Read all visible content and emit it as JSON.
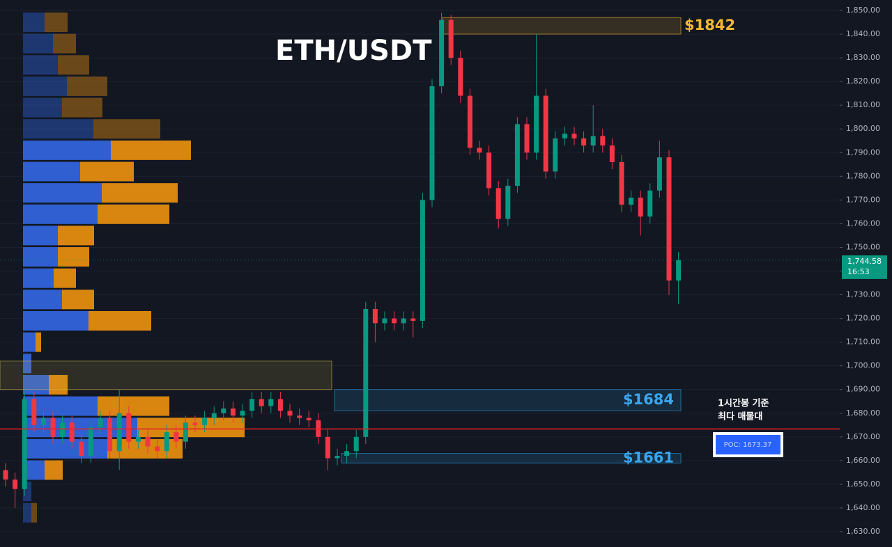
{
  "chart_data": {
    "type": "candlestick",
    "title": "ETH/USDT",
    "open": [
      1656,
      1652,
      1648,
      1686,
      1675,
      1678,
      1670,
      1676,
      1668,
      1662,
      1674,
      1678,
      1664,
      1680,
      1668,
      1670,
      1666,
      1664,
      1672,
      1668,
      1676,
      1675,
      1678,
      1680,
      1682,
      1679,
      1681,
      1686,
      1683,
      1686,
      1681,
      1679,
      1678,
      1677,
      1670,
      1661,
      1662,
      1664,
      1670,
      1724,
      1718,
      1720,
      1718,
      1720,
      1719,
      1770,
      1818,
      1846,
      1830,
      1814,
      1792,
      1790,
      1775,
      1762,
      1776,
      1802,
      1790,
      1814,
      1782,
      1796,
      1798,
      1796,
      1793,
      1797,
      1793,
      1786,
      1768,
      1771,
      1763,
      1774,
      1788,
      1736
    ],
    "high": [
      1659,
      1655,
      1690,
      1689,
      1681,
      1681,
      1679,
      1679,
      1671,
      1677,
      1681,
      1681,
      1690,
      1683,
      1673,
      1673,
      1669,
      1675,
      1675,
      1679,
      1679,
      1681,
      1683,
      1685,
      1685,
      1684,
      1689,
      1689,
      1689,
      1689,
      1684,
      1682,
      1681,
      1680,
      1673,
      1665,
      1667,
      1673,
      1727,
      1727,
      1723,
      1723,
      1723,
      1723,
      1773,
      1821,
      1849,
      1848,
      1833,
      1817,
      1795,
      1793,
      1778,
      1779,
      1805,
      1805,
      1840,
      1817,
      1799,
      1801,
      1801,
      1799,
      1810,
      1800,
      1796,
      1789,
      1774,
      1774,
      1777,
      1795,
      1791,
      1748
    ],
    "low": [
      1649,
      1640,
      1645,
      1672,
      1672,
      1667,
      1667,
      1665,
      1659,
      1659,
      1671,
      1661,
      1656,
      1665,
      1665,
      1663,
      1661,
      1661,
      1665,
      1665,
      1672,
      1672,
      1675,
      1677,
      1676,
      1676,
      1678,
      1680,
      1680,
      1678,
      1676,
      1675,
      1674,
      1667,
      1656,
      1658,
      1659,
      1661,
      1667,
      1710,
      1715,
      1715,
      1715,
      1712,
      1716,
      1767,
      1815,
      1827,
      1811,
      1789,
      1787,
      1772,
      1758,
      1759,
      1773,
      1787,
      1787,
      1779,
      1779,
      1793,
      1793,
      1790,
      1790,
      1790,
      1783,
      1765,
      1765,
      1755,
      1760,
      1771,
      1730,
      1726
    ],
    "close": [
      1652,
      1648,
      1686,
      1675,
      1678,
      1670,
      1676,
      1668,
      1662,
      1674,
      1678,
      1664,
      1680,
      1668,
      1670,
      1666,
      1664,
      1672,
      1668,
      1676,
      1675,
      1678,
      1680,
      1682,
      1679,
      1681,
      1686,
      1683,
      1686,
      1681,
      1679,
      1678,
      1677,
      1670,
      1661,
      1662,
      1664,
      1670,
      1724,
      1718,
      1720,
      1718,
      1720,
      1719,
      1770,
      1818,
      1846,
      1830,
      1814,
      1792,
      1790,
      1775,
      1762,
      1776,
      1802,
      1790,
      1814,
      1782,
      1796,
      1798,
      1796,
      1793,
      1797,
      1793,
      1786,
      1768,
      1771,
      1763,
      1774,
      1788,
      1736,
      1744.58
    ],
    "up_color": "#089981",
    "down_color": "#f23645",
    "ylim": [
      1630,
      1850
    ],
    "yticks": [
      {
        "value": 1850,
        "label": "1,850.00"
      },
      {
        "value": 1840,
        "label": "1,840.00"
      },
      {
        "value": 1830,
        "label": "1,830.00"
      },
      {
        "value": 1820,
        "label": "1,820.00"
      },
      {
        "value": 1810,
        "label": "1,810.00"
      },
      {
        "value": 1800,
        "label": "1,800.00"
      },
      {
        "value": 1790,
        "label": "1,790.00"
      },
      {
        "value": 1780,
        "label": "1,780.00"
      },
      {
        "value": 1770,
        "label": "1,770.00"
      },
      {
        "value": 1760,
        "label": "1,760.00"
      },
      {
        "value": 1750,
        "label": "1,750.00"
      },
      {
        "value": 1740,
        "label": "1,740.00"
      },
      {
        "value": 1730,
        "label": "1,730.00"
      },
      {
        "value": 1720,
        "label": "1,720.00"
      },
      {
        "value": 1710,
        "label": "1,710.00"
      },
      {
        "value": 1700,
        "label": "1,700.00"
      },
      {
        "value": 1690,
        "label": "1,690.00"
      },
      {
        "value": 1680,
        "label": "1,680.00"
      },
      {
        "value": 1670,
        "label": "1,670.00"
      },
      {
        "value": 1660,
        "label": "1,660.00"
      },
      {
        "value": 1650,
        "label": "1,650.00"
      },
      {
        "value": 1640,
        "label": "1,640.00"
      },
      {
        "value": 1630,
        "label": "1,630.00"
      }
    ],
    "grid": true,
    "last_price": {
      "value": 1744.58,
      "label": "1,744.58"
    },
    "countdown": "16:53",
    "volume_profile": {
      "price_levels": [
        1845,
        1836,
        1827,
        1818,
        1809,
        1800,
        1791,
        1782,
        1773,
        1764,
        1755,
        1746,
        1737,
        1728,
        1719,
        1710,
        1701,
        1692,
        1683,
        1674,
        1665,
        1656,
        1647,
        1638
      ],
      "buy": [
        31,
        43,
        50,
        63,
        56,
        101,
        126,
        82,
        113,
        107,
        50,
        50,
        44,
        56,
        94,
        18,
        12,
        37,
        107,
        164,
        121,
        31,
        12,
        12
      ],
      "sell": [
        33,
        33,
        45,
        58,
        58,
        96,
        115,
        77,
        109,
        103,
        52,
        45,
        32,
        46,
        90,
        8,
        0,
        27,
        103,
        154,
        108,
        26,
        0,
        8
      ],
      "value_area": [
        1651,
        1796
      ],
      "buy_color": "#2f5fd0",
      "sell_color": "#d8860f"
    },
    "zones": [
      {
        "label": "$1842",
        "low": 1840,
        "high": 1847,
        "color": "#f5b82e"
      },
      {
        "low": 1690,
        "high": 1702,
        "color": "#c9b24a"
      },
      {
        "label": "$1684",
        "low": 1681,
        "high": 1690,
        "color": "#2a9fe0"
      },
      {
        "label": "$1661",
        "low": 1659,
        "high": 1663,
        "color": "#2a9fe0"
      }
    ],
    "poc": 1673.37,
    "poc_label": "POC: 1673.37",
    "annotation": [
      "1시간봉 기준",
      "최다 매물대"
    ]
  }
}
